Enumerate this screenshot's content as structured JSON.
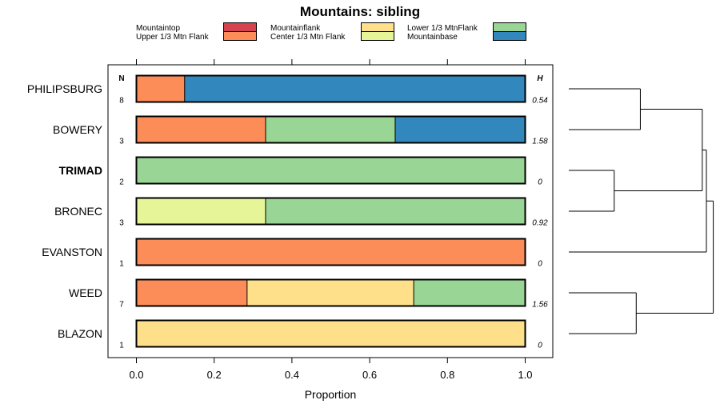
{
  "chart_data": {
    "type": "bar",
    "stacked": true,
    "orientation": "horizontal",
    "title": "Mountains: sibling",
    "xlabel": "Proportion",
    "ylabel": "",
    "xlim": [
      0,
      1
    ],
    "xticks": [
      0,
      0.2,
      0.4,
      0.6,
      0.8,
      1
    ],
    "xtick_labels": [
      "0.0",
      "0.2",
      "0.4",
      "0.6",
      "0.8",
      "1.0"
    ],
    "n_header": "N",
    "h_header": "H",
    "legend_position": "top",
    "legend": [
      {
        "key": "mountaintop",
        "name": "Mountaintop",
        "color": "#d7424f"
      },
      {
        "key": "upper",
        "name": "Upper 1/3 Mtn Flank",
        "color": "#fc8d59"
      },
      {
        "key": "flank",
        "name": "Mountainflank",
        "color": "#fee08b"
      },
      {
        "key": "center",
        "name": "Center 1/3 Mtn Flank",
        "color": "#e6f598"
      },
      {
        "key": "lower",
        "name": "Lower 1/3 MtnFlank",
        "color": "#99d594"
      },
      {
        "key": "base",
        "name": "Mountainbase",
        "color": "#3288bd"
      }
    ],
    "rows": [
      {
        "name": "PHILIPSBURG",
        "bold": false,
        "n": "8",
        "h": "0.54",
        "segments": [
          {
            "key": "upper",
            "value": 0.125
          },
          {
            "key": "base",
            "value": 0.875
          }
        ]
      },
      {
        "name": "BOWERY",
        "bold": false,
        "n": "3",
        "h": "1.58",
        "segments": [
          {
            "key": "upper",
            "value": 0.3333
          },
          {
            "key": "lower",
            "value": 0.3333
          },
          {
            "key": "base",
            "value": 0.3334
          }
        ]
      },
      {
        "name": "TRIMAD",
        "bold": true,
        "n": "2",
        "h": "0",
        "segments": [
          {
            "key": "lower",
            "value": 1.0
          }
        ]
      },
      {
        "name": "BRONEC",
        "bold": false,
        "n": "3",
        "h": "0.92",
        "segments": [
          {
            "key": "center",
            "value": 0.3333
          },
          {
            "key": "lower",
            "value": 0.6667
          }
        ]
      },
      {
        "name": "EVANSTON",
        "bold": false,
        "n": "1",
        "h": "0",
        "segments": [
          {
            "key": "upper",
            "value": 1.0
          }
        ]
      },
      {
        "name": "WEED",
        "bold": false,
        "n": "7",
        "h": "1.56",
        "segments": [
          {
            "key": "upper",
            "value": 0.2857
          },
          {
            "key": "flank",
            "value": 0.4286
          },
          {
            "key": "lower",
            "value": 0.2857
          }
        ]
      },
      {
        "name": "BLAZON",
        "bold": false,
        "n": "1",
        "h": "0",
        "segments": [
          {
            "key": "flank",
            "value": 1.0
          }
        ]
      }
    ],
    "dendrogram": {
      "type": "hierarchical-clustering",
      "merges": [
        {
          "members": [
            "PHILIPSBURG",
            "BOWERY"
          ],
          "height": 0.52
        },
        {
          "members": [
            "TRIMAD",
            "BRONEC"
          ],
          "height": 0.33
        },
        {
          "members": [
            "PHILIPSBURG",
            "BOWERY",
            "TRIMAD",
            "BRONEC"
          ],
          "height": 0.97
        },
        {
          "members": [
            "WEED",
            "BLAZON"
          ],
          "height": 0.49
        },
        {
          "members": [
            "PHILIPSBURG",
            "BOWERY",
            "TRIMAD",
            "BRONEC",
            "EVANSTON"
          ],
          "height": 1.0
        },
        {
          "members": [
            "PHILIPSBURG",
            "BOWERY",
            "TRIMAD",
            "BRONEC",
            "EVANSTON",
            "WEED",
            "BLAZON"
          ],
          "height": 1.05
        }
      ]
    }
  }
}
